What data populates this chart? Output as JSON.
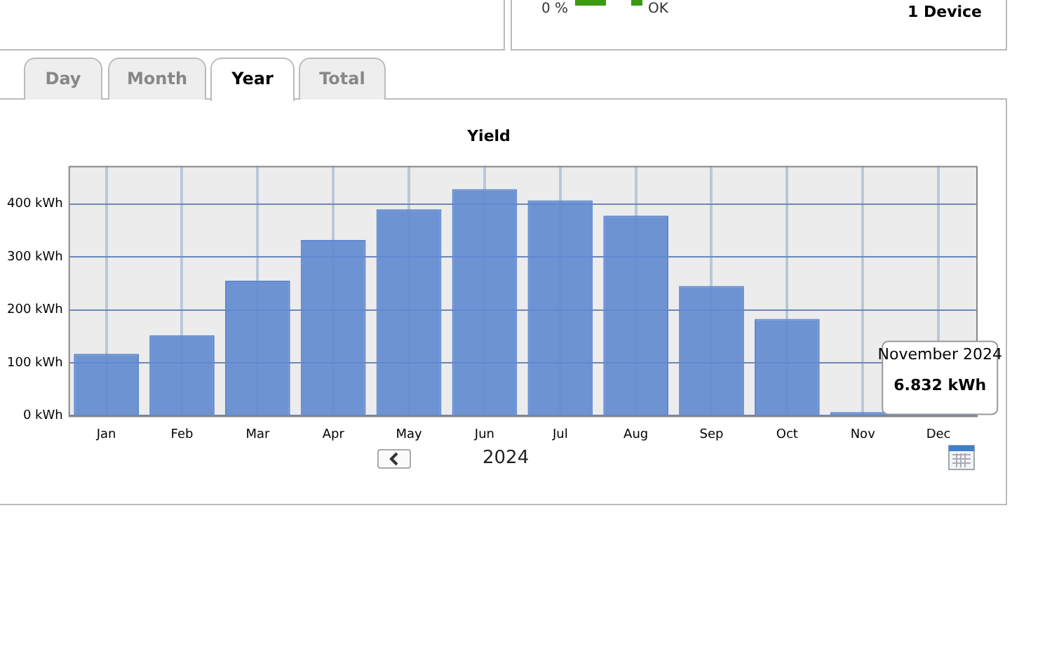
{
  "chart_data": {
    "type": "bar",
    "title": "Yield",
    "categories": [
      "Jan",
      "Feb",
      "Mar",
      "Apr",
      "May",
      "Jun",
      "Jul",
      "Aug",
      "Sep",
      "Oct",
      "Nov",
      "Dec"
    ],
    "values": [
      117,
      152,
      255,
      332,
      390,
      428,
      407,
      378,
      245,
      183,
      6.832,
      null
    ],
    "color": "#6089d0",
    "ylim": [
      0,
      472
    ],
    "yticks": [
      {
        "value": 0,
        "label": "0 kWh"
      },
      {
        "value": 100,
        "label": "100 kWh"
      },
      {
        "value": 200,
        "label": "200 kWh"
      },
      {
        "value": 300,
        "label": "300 kWh"
      },
      {
        "value": 400,
        "label": "400 kWh"
      }
    ],
    "grid": true,
    "annotations": [
      "0 %",
      "OK",
      "1 Device",
      "Day",
      "Month",
      "Year",
      "Total",
      "2024",
      "November 2024",
      "6.832 kWh"
    ]
  }
}
